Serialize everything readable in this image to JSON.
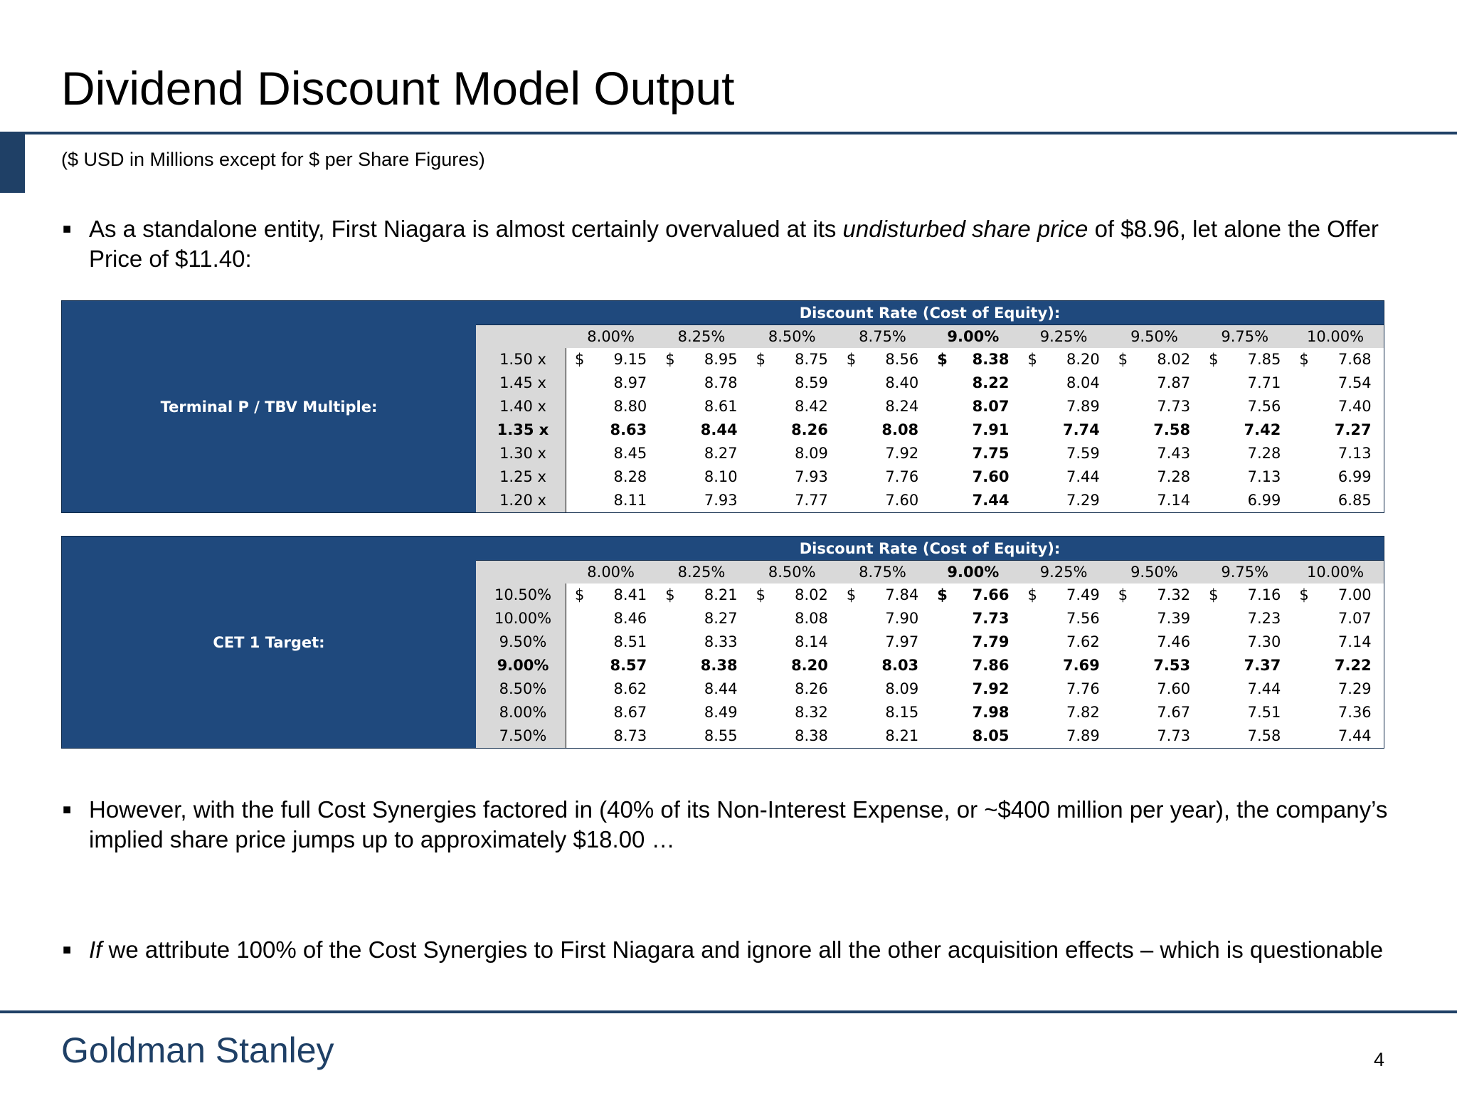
{
  "title": "Dividend Discount Model Output",
  "subtitle": "($ USD in Millions except for $ per Share Figures)",
  "bullets": {
    "b1": {
      "pre": "As a standalone entity, First Niagara is almost certainly overvalued at its ",
      "em": "undisturbed share price",
      "post": " of $8.96, let alone the Offer Price of $11.40:"
    },
    "b2": {
      "text": "However, with the full Cost Synergies factored in (40% of its Non-Interest Expense, or ~$400 million per year), the company’s implied share price jumps up to approximately $18.00 …"
    },
    "b3": {
      "em": "If",
      "post": " we attribute 100% of the Cost Synergies to First Niagara and ignore all the other acquisition effects – which is questionable"
    }
  },
  "tables": [
    {
      "side_label": "Terminal P / TBV Multiple:",
      "header_label": "Discount Rate (Cost of Equity):",
      "rates": [
        "8.00%",
        "8.25%",
        "8.50%",
        "8.75%",
        "9.00%",
        "9.25%",
        "9.50%",
        "9.75%",
        "10.00%"
      ],
      "bold_col": 4,
      "bold_row": 3,
      "row_labels": [
        "1.50 x",
        "1.45 x",
        "1.40 x",
        "1.35 x",
        "1.30 x",
        "1.25 x",
        "1.20 x"
      ],
      "values": [
        [
          "9.15",
          "8.95",
          "8.75",
          "8.56",
          "8.38",
          "8.20",
          "8.02",
          "7.85",
          "7.68"
        ],
        [
          "8.97",
          "8.78",
          "8.59",
          "8.40",
          "8.22",
          "8.04",
          "7.87",
          "7.71",
          "7.54"
        ],
        [
          "8.80",
          "8.61",
          "8.42",
          "8.24",
          "8.07",
          "7.89",
          "7.73",
          "7.56",
          "7.40"
        ],
        [
          "8.63",
          "8.44",
          "8.26",
          "8.08",
          "7.91",
          "7.74",
          "7.58",
          "7.42",
          "7.27"
        ],
        [
          "8.45",
          "8.27",
          "8.09",
          "7.92",
          "7.75",
          "7.59",
          "7.43",
          "7.28",
          "7.13"
        ],
        [
          "8.28",
          "8.10",
          "7.93",
          "7.76",
          "7.60",
          "7.44",
          "7.28",
          "7.13",
          "6.99"
        ],
        [
          "8.11",
          "7.93",
          "7.77",
          "7.60",
          "7.44",
          "7.29",
          "7.14",
          "6.99",
          "6.85"
        ]
      ]
    },
    {
      "side_label": "CET 1 Target:",
      "header_label": "Discount Rate (Cost of Equity):",
      "rates": [
        "8.00%",
        "8.25%",
        "8.50%",
        "8.75%",
        "9.00%",
        "9.25%",
        "9.50%",
        "9.75%",
        "10.00%"
      ],
      "bold_col": 4,
      "bold_row": 3,
      "row_labels": [
        "10.50%",
        "10.00%",
        "9.50%",
        "9.00%",
        "8.50%",
        "8.00%",
        "7.50%"
      ],
      "values": [
        [
          "8.41",
          "8.21",
          "8.02",
          "7.84",
          "7.66",
          "7.49",
          "7.32",
          "7.16",
          "7.00"
        ],
        [
          "8.46",
          "8.27",
          "8.08",
          "7.90",
          "7.73",
          "7.56",
          "7.39",
          "7.23",
          "7.07"
        ],
        [
          "8.51",
          "8.33",
          "8.14",
          "7.97",
          "7.79",
          "7.62",
          "7.46",
          "7.30",
          "7.14"
        ],
        [
          "8.57",
          "8.38",
          "8.20",
          "8.03",
          "7.86",
          "7.69",
          "7.53",
          "7.37",
          "7.22"
        ],
        [
          "8.62",
          "8.44",
          "8.26",
          "8.09",
          "7.92",
          "7.76",
          "7.60",
          "7.44",
          "7.29"
        ],
        [
          "8.67",
          "8.49",
          "8.32",
          "8.15",
          "7.98",
          "7.82",
          "7.67",
          "7.51",
          "7.36"
        ],
        [
          "8.73",
          "8.55",
          "8.38",
          "8.21",
          "8.05",
          "7.89",
          "7.73",
          "7.58",
          "7.44"
        ]
      ]
    }
  ],
  "currency_symbol": "$",
  "bullet_glyph": "■",
  "footer": {
    "brand": "Goldman Stanley",
    "page_number": "4"
  },
  "colors": {
    "table_fill": "#1f497d",
    "header_gray": "#d9d9d9",
    "rule": "#1f4066"
  }
}
